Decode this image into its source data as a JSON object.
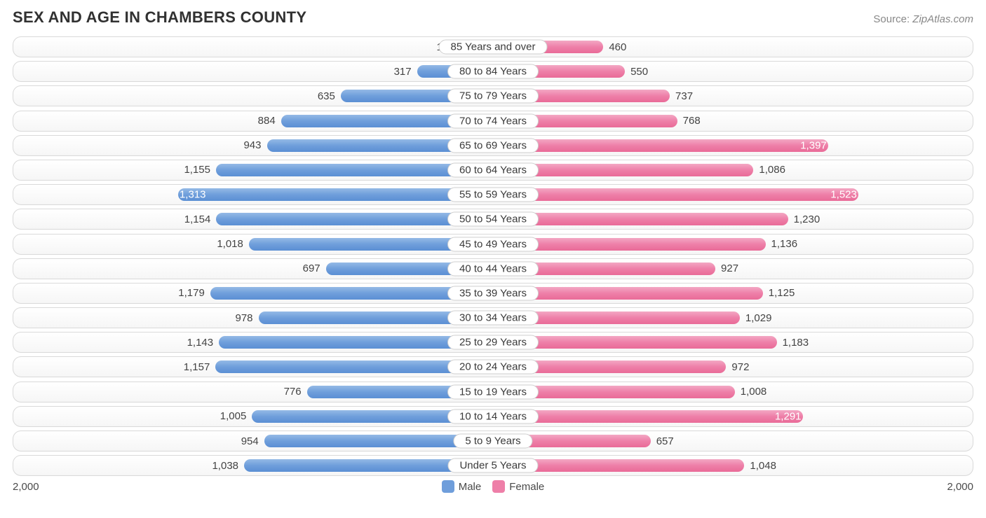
{
  "title": "SEX AND AGE IN CHAMBERS COUNTY",
  "source_prefix": "Source: ",
  "source_name": "ZipAtlas.com",
  "chart": {
    "type": "diverging-bar",
    "max_value": 2000,
    "axis_left_label": "2,000",
    "axis_right_label": "2,000",
    "male_color_top": "#94b9e6",
    "male_color_mid": "#6f9edb",
    "male_color_bot": "#5b8fd4",
    "female_color_top": "#f3a8c3",
    "female_color_mid": "#ee7fa8",
    "female_color_bot": "#e96b98",
    "row_bg_top": "#ffffff",
    "row_bg_bot": "#f6f6f6",
    "row_border": "#d9d9d9",
    "text_color": "#434343",
    "inside_text_color": "#ffffff",
    "inside_threshold": 1250,
    "legend": [
      {
        "label": "Male",
        "color": "#6f9edb"
      },
      {
        "label": "Female",
        "color": "#ee7fa8"
      }
    ],
    "rows": [
      {
        "category": "85 Years and over",
        "male": 139,
        "female": 460
      },
      {
        "category": "80 to 84 Years",
        "male": 317,
        "female": 550
      },
      {
        "category": "75 to 79 Years",
        "male": 635,
        "female": 737
      },
      {
        "category": "70 to 74 Years",
        "male": 884,
        "female": 768
      },
      {
        "category": "65 to 69 Years",
        "male": 943,
        "female": 1397
      },
      {
        "category": "60 to 64 Years",
        "male": 1155,
        "female": 1086
      },
      {
        "category": "55 to 59 Years",
        "male": 1313,
        "female": 1523
      },
      {
        "category": "50 to 54 Years",
        "male": 1154,
        "female": 1230
      },
      {
        "category": "45 to 49 Years",
        "male": 1018,
        "female": 1136
      },
      {
        "category": "40 to 44 Years",
        "male": 697,
        "female": 927
      },
      {
        "category": "35 to 39 Years",
        "male": 1179,
        "female": 1125
      },
      {
        "category": "30 to 34 Years",
        "male": 978,
        "female": 1029
      },
      {
        "category": "25 to 29 Years",
        "male": 1143,
        "female": 1183
      },
      {
        "category": "20 to 24 Years",
        "male": 1157,
        "female": 972
      },
      {
        "category": "15 to 19 Years",
        "male": 776,
        "female": 1008
      },
      {
        "category": "10 to 14 Years",
        "male": 1005,
        "female": 1291
      },
      {
        "category": "5 to 9 Years",
        "male": 954,
        "female": 657
      },
      {
        "category": "Under 5 Years",
        "male": 1038,
        "female": 1048
      }
    ]
  }
}
